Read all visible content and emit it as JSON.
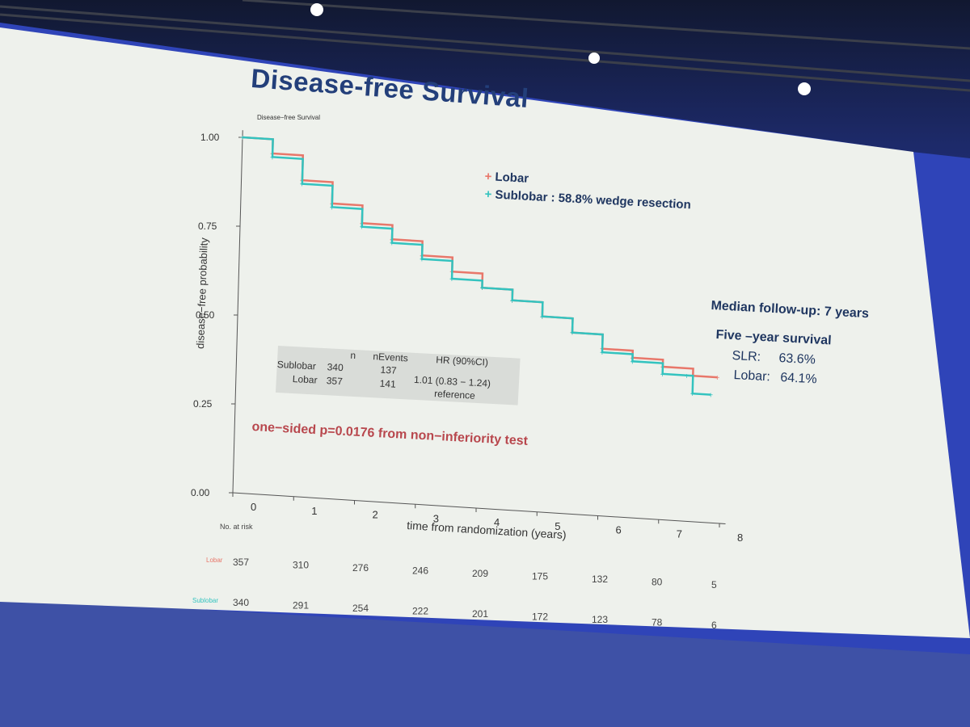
{
  "slide": {
    "title": "Disease-free  Survival",
    "plot_caption": "Disease−free  Survival",
    "legend": {
      "lobar": "Lobar",
      "sublobar": "Sublobar : 58.8% wedge resection"
    },
    "followup": "Median follow-up: 7 years",
    "five_year": {
      "heading": "Five –year survival",
      "slr_label": "SLR:",
      "slr_value": "63.6%",
      "lobar_label": "Lobar:",
      "lobar_value": "64.1%"
    },
    "pvalue": "one−sided p=0.0176 from non−inferiority test",
    "hr_table": {
      "headers": [
        "n",
        "nEvents",
        "HR (90%CI)"
      ],
      "rows": [
        {
          "group": "Sublobar",
          "n": "340",
          "events": "137",
          "hr": "1.01 (0.83 − 1.24)"
        },
        {
          "group": "Lobar",
          "n": "357",
          "events": "141",
          "hr": "reference"
        }
      ]
    },
    "risk": {
      "heading": "No. at risk",
      "lobar_label": "Lobar",
      "sublobar_label": "Sublobar",
      "lobar": [
        "357",
        "310",
        "276",
        "246",
        "209",
        "175",
        "132",
        "80",
        "5"
      ],
      "sublobar": [
        "340",
        "291",
        "254",
        "222",
        "201",
        "172",
        "123",
        "78",
        "6"
      ]
    }
  },
  "colors": {
    "lobar": "#e8776a",
    "sublobar": "#33c3bf",
    "title": "#233f7a",
    "pvalue": "#b8474d"
  },
  "chart_data": {
    "type": "line",
    "title": "Disease−free  Survival",
    "xlabel": "time from randomization (years)",
    "ylabel": "disease−free probability",
    "xlim": [
      0,
      8
    ],
    "ylim": [
      0,
      1
    ],
    "xticks": [
      "0",
      "1",
      "2",
      "3",
      "4",
      "5",
      "6",
      "7",
      "8"
    ],
    "yticks": [
      "0.00",
      "0.25",
      "0.50",
      "0.75",
      "1.00"
    ],
    "series": [
      {
        "name": "Lobar",
        "x": [
          0,
          0.5,
          1.0,
          1.5,
          2.0,
          2.5,
          3.0,
          3.5,
          4.0,
          4.5,
          5.0,
          5.5,
          6.0,
          6.5,
          7.0,
          7.5,
          7.9
        ],
        "y": [
          1.0,
          0.96,
          0.89,
          0.83,
          0.78,
          0.74,
          0.7,
          0.66,
          0.62,
          0.59,
          0.55,
          0.51,
          0.47,
          0.45,
          0.43,
          0.41,
          0.41
        ]
      },
      {
        "name": "Sublobar",
        "x": [
          0,
          0.5,
          1.0,
          1.5,
          2.0,
          2.5,
          3.0,
          3.5,
          4.0,
          4.5,
          5.0,
          5.5,
          6.0,
          6.5,
          7.0,
          7.4,
          7.5,
          7.8
        ],
        "y": [
          1.0,
          0.95,
          0.88,
          0.82,
          0.77,
          0.73,
          0.69,
          0.64,
          0.62,
          0.59,
          0.55,
          0.51,
          0.46,
          0.44,
          0.41,
          0.41,
          0.36,
          0.36
        ]
      }
    ]
  }
}
